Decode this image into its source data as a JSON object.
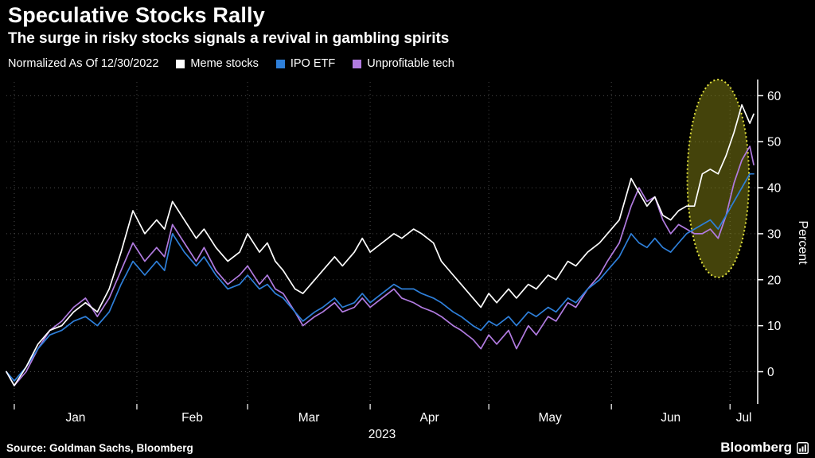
{
  "header": {
    "title": "Speculative Stocks Rally",
    "subtitle": "The surge in risky stocks signals a revival in gambling spirits"
  },
  "legend": {
    "note": "Normalized As Of 12/30/2022",
    "items": [
      {
        "label": "Meme stocks",
        "color": "#ffffff"
      },
      {
        "label": "IPO ETF",
        "color": "#2e7fd9"
      },
      {
        "label": "Unprofitable tech",
        "color": "#b17be0"
      }
    ]
  },
  "footer": {
    "source": "Source: Goldman Sachs, Bloomberg",
    "brand": "Bloomberg"
  },
  "chart_data": {
    "type": "line",
    "title": "Speculative Stocks Rally",
    "subtitle": "The surge in risky stocks signals a revival in gambling spirits",
    "ylabel": "Percent",
    "ylim": [
      -7,
      63
    ],
    "yticks": [
      0,
      10,
      20,
      30,
      40,
      50,
      60
    ],
    "x_domain": [
      0,
      190
    ],
    "x_unit": "days since 2022-12-30",
    "year_label": "2023",
    "months": [
      {
        "label": "Jan",
        "start_day": 2
      },
      {
        "label": "Feb",
        "start_day": 33
      },
      {
        "label": "Mar",
        "start_day": 61
      },
      {
        "label": "Apr",
        "start_day": 92
      },
      {
        "label": "May",
        "start_day": 122
      },
      {
        "label": "Jun",
        "start_day": 153
      },
      {
        "label": "Jul",
        "start_day": 183
      }
    ],
    "x_days": [
      0,
      2,
      5,
      8,
      11,
      14,
      17,
      20,
      23,
      26,
      29,
      32,
      35,
      38,
      40,
      42,
      45,
      48,
      50,
      53,
      56,
      59,
      61,
      64,
      66,
      68,
      70,
      73,
      75,
      78,
      80,
      83,
      85,
      88,
      90,
      92,
      95,
      98,
      100,
      103,
      105,
      108,
      110,
      113,
      115,
      118,
      120,
      122,
      124,
      127,
      129,
      132,
      134,
      137,
      139,
      142,
      144,
      147,
      150,
      152,
      155,
      158,
      160,
      162,
      164,
      166,
      168,
      170,
      172,
      174,
      176,
      178,
      180,
      182,
      184,
      186,
      188,
      189
    ],
    "series": [
      {
        "name": "Meme stocks",
        "color": "#ffffff",
        "values": [
          0,
          -3,
          1,
          6,
          9,
          10,
          13,
          15,
          13,
          18,
          26,
          35,
          30,
          33,
          31,
          37,
          33,
          29,
          31,
          27,
          24,
          26,
          30,
          26,
          28,
          24,
          22,
          18,
          17,
          20,
          22,
          25,
          23,
          26,
          29,
          26,
          28,
          30,
          29,
          31,
          30,
          28,
          24,
          21,
          19,
          16,
          14,
          17,
          15,
          18,
          16,
          19,
          18,
          21,
          20,
          24,
          23,
          26,
          28,
          30,
          33,
          42,
          39,
          36,
          38,
          34,
          33,
          35,
          36,
          36,
          43,
          44,
          43,
          47,
          52,
          58,
          54,
          56
        ]
      },
      {
        "name": "IPO ETF",
        "color": "#2e7fd9",
        "values": [
          0,
          -2,
          1,
          5,
          8,
          9,
          11,
          12,
          10,
          13,
          19,
          24,
          21,
          24,
          22,
          30,
          26,
          23,
          25,
          21,
          18,
          19,
          21,
          18,
          19,
          17,
          16,
          13,
          11,
          13,
          14,
          16,
          14,
          15,
          17,
          15,
          17,
          19,
          18,
          18,
          17,
          16,
          15,
          13,
          12,
          10,
          9,
          11,
          10,
          12,
          10,
          13,
          12,
          14,
          13,
          16,
          15,
          18,
          20,
          22,
          25,
          30,
          28,
          27,
          29,
          27,
          26,
          28,
          30,
          31,
          32,
          33,
          31,
          34,
          37,
          40,
          43,
          43
        ]
      },
      {
        "name": "Unprofitable tech",
        "color": "#b17be0",
        "values": [
          0,
          -3,
          0,
          5,
          9,
          11,
          14,
          16,
          12,
          16,
          22,
          28,
          24,
          27,
          25,
          32,
          28,
          24,
          27,
          22,
          19,
          21,
          23,
          19,
          21,
          18,
          17,
          13,
          10,
          12,
          13,
          15,
          13,
          14,
          16,
          14,
          16,
          18,
          16,
          15,
          14,
          13,
          12,
          10,
          9,
          7,
          5,
          8,
          6,
          9,
          5,
          10,
          8,
          12,
          11,
          15,
          14,
          18,
          21,
          24,
          28,
          36,
          40,
          37,
          38,
          33,
          30,
          32,
          31,
          30,
          30,
          31,
          29,
          34,
          41,
          46,
          49,
          45
        ]
      }
    ],
    "highlight": {
      "shape": "ellipse",
      "center_day": 180,
      "center_value": 42,
      "rx_days": 7.8,
      "ry_value": 21.5,
      "fill": "rgba(150,148,25,0.45)",
      "stroke": "#e2e23c"
    }
  }
}
